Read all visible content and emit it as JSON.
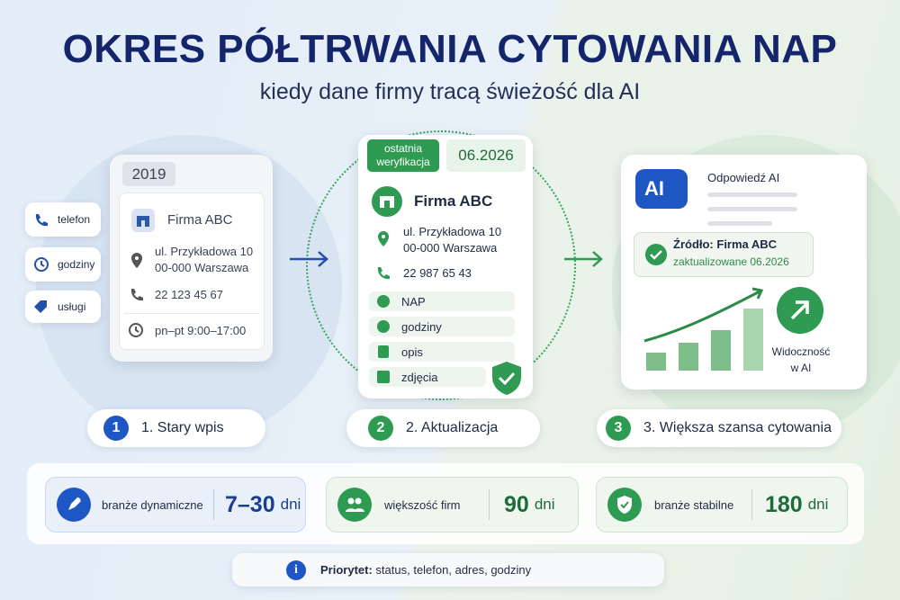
{
  "title": "OKRES PÓŁTRWANIA CYTOWANIA NAP",
  "subtitle": "kiedy dane firmy tracą świeżość dla AI",
  "side_tags": [
    "telefon",
    "godziny",
    "usługi"
  ],
  "old_card": {
    "year": "2019",
    "name": "Firma ABC",
    "address": [
      "ul. Przykładowa 10",
      "00-000 Warszawa"
    ],
    "phone": "22 123 45 67",
    "hours": "pn–pt 9:00–17:00"
  },
  "new_card": {
    "badge": [
      "ostatnia",
      "weryfikacja"
    ],
    "date": "06.2026",
    "name": "Firma ABC",
    "address": [
      "ul. Przykładowa 10",
      "00-000 Warszawa"
    ],
    "phone": "22 987 65 43",
    "items": [
      "NAP",
      "godziny",
      "opis",
      "zdjęcia"
    ]
  },
  "ai_card": {
    "logo": "AI",
    "heading": "Odpowiedź AI",
    "source": "Źródło: Firma ABC",
    "updated": "zaktualizowane 06.2026",
    "visibility": [
      "Widoczność",
      "w AI"
    ]
  },
  "steps": [
    {
      "number": "1",
      "label": "1. Stary wpis"
    },
    {
      "number": "2",
      "label": "2. Aktualizacja"
    },
    {
      "number": "3",
      "label": "3. Większa szansa cytowania"
    }
  ],
  "stats": [
    {
      "label": "branże dynamiczne",
      "value": "7–30",
      "unit": "dni"
    },
    {
      "label": "większość firm",
      "value": "90",
      "unit": "dni"
    },
    {
      "label": "branże stabilne",
      "value": "180",
      "unit": "dni"
    }
  ],
  "note": {
    "bold": "Priorytet:",
    "text": "status, telefon, adres, godziny"
  }
}
